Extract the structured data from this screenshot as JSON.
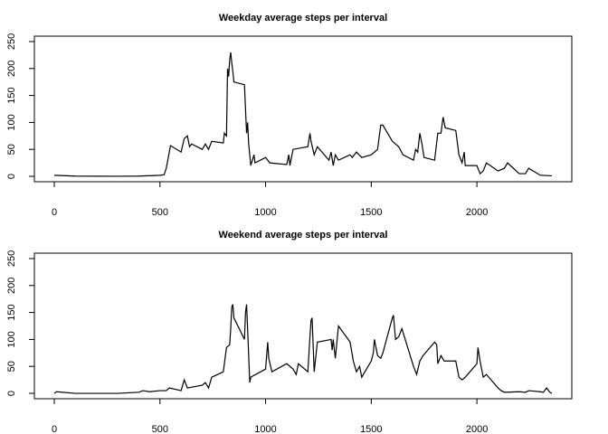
{
  "chart_data": [
    {
      "type": "line",
      "title": "Weekday average steps per interval",
      "color": "#000000",
      "x": [
        0,
        100,
        200,
        300,
        400,
        500,
        520,
        530,
        550,
        600,
        615,
        630,
        640,
        650,
        700,
        715,
        730,
        745,
        800,
        805,
        815,
        820,
        825,
        830,
        835,
        840,
        845,
        850,
        900,
        910,
        915,
        920,
        925,
        930,
        945,
        950,
        1000,
        1010,
        1020,
        1100,
        1110,
        1115,
        1130,
        1200,
        1210,
        1215,
        1230,
        1245,
        1300,
        1310,
        1320,
        1330,
        1345,
        1400,
        1410,
        1430,
        1455,
        1500,
        1530,
        1545,
        1555,
        1600,
        1630,
        1650,
        1700,
        1710,
        1720,
        1730,
        1740,
        1750,
        1800,
        1815,
        1830,
        1840,
        1850,
        1900,
        1915,
        1930,
        1940,
        1945,
        2000,
        2015,
        2030,
        2045,
        2100,
        2130,
        2145,
        2200,
        2215,
        2230,
        2245,
        2300,
        2355
      ],
      "values": [
        2,
        0.5,
        0.3,
        0.2,
        0.5,
        2,
        3,
        15,
        57,
        45,
        70,
        75,
        55,
        60,
        50,
        60,
        50,
        65,
        62,
        80,
        75,
        200,
        185,
        215,
        230,
        210,
        195,
        175,
        170,
        80,
        100,
        60,
        40,
        20,
        40,
        25,
        35,
        30,
        25,
        22,
        40,
        20,
        50,
        55,
        80,
        65,
        40,
        55,
        30,
        45,
        20,
        40,
        30,
        40,
        35,
        45,
        35,
        40,
        50,
        95,
        95,
        65,
        55,
        40,
        30,
        50,
        45,
        80,
        60,
        35,
        30,
        80,
        80,
        110,
        90,
        85,
        40,
        25,
        45,
        20,
        20,
        5,
        10,
        25,
        10,
        15,
        25,
        5,
        5,
        5,
        15,
        2,
        1
      ],
      "xlim": [
        -94.2,
        2449.2
      ],
      "ylim": [
        -10,
        260
      ],
      "xticks": [
        0,
        500,
        1000,
        1500,
        2000
      ],
      "yticks": [
        0,
        50,
        100,
        150,
        200,
        250
      ]
    },
    {
      "type": "line",
      "title": "Weekend average steps per interval",
      "color": "#000000",
      "x": [
        0,
        10,
        100,
        200,
        300,
        400,
        420,
        450,
        500,
        530,
        545,
        600,
        615,
        630,
        700,
        715,
        730,
        745,
        800,
        815,
        830,
        835,
        840,
        845,
        850,
        900,
        905,
        910,
        915,
        925,
        930,
        1000,
        1010,
        1015,
        1030,
        1100,
        1130,
        1145,
        1155,
        1200,
        1210,
        1215,
        1220,
        1230,
        1245,
        1310,
        1315,
        1320,
        1330,
        1345,
        1400,
        1415,
        1430,
        1445,
        1455,
        1500,
        1510,
        1515,
        1530,
        1545,
        1555,
        1600,
        1605,
        1615,
        1630,
        1645,
        1700,
        1715,
        1730,
        1745,
        1800,
        1810,
        1815,
        1830,
        1845,
        1900,
        1915,
        1930,
        1945,
        2000,
        2005,
        2015,
        2030,
        2045,
        2100,
        2115,
        2130,
        2200,
        2230,
        2245,
        2300,
        2315,
        2330,
        2345,
        2355
      ],
      "values": [
        0,
        3,
        0,
        0,
        0,
        2,
        5,
        3,
        5,
        5,
        10,
        5,
        25,
        10,
        15,
        20,
        10,
        30,
        40,
        85,
        90,
        120,
        160,
        165,
        140,
        100,
        150,
        165,
        120,
        20,
        30,
        45,
        95,
        65,
        40,
        55,
        45,
        35,
        55,
        40,
        105,
        135,
        140,
        40,
        95,
        100,
        80,
        100,
        65,
        125,
        95,
        60,
        40,
        50,
        30,
        60,
        75,
        100,
        70,
        65,
        75,
        140,
        145,
        100,
        105,
        120,
        50,
        35,
        60,
        70,
        95,
        90,
        55,
        70,
        60,
        60,
        30,
        25,
        30,
        55,
        85,
        60,
        30,
        35,
        10,
        5,
        2,
        3,
        2,
        5,
        3,
        2,
        10,
        2,
        0
      ],
      "xlim": [
        -94.2,
        2449.2
      ],
      "ylim": [
        -10,
        260
      ],
      "xticks": [
        0,
        500,
        1000,
        1500,
        2000
      ],
      "yticks": [
        0,
        50,
        100,
        150,
        200,
        250
      ]
    }
  ]
}
